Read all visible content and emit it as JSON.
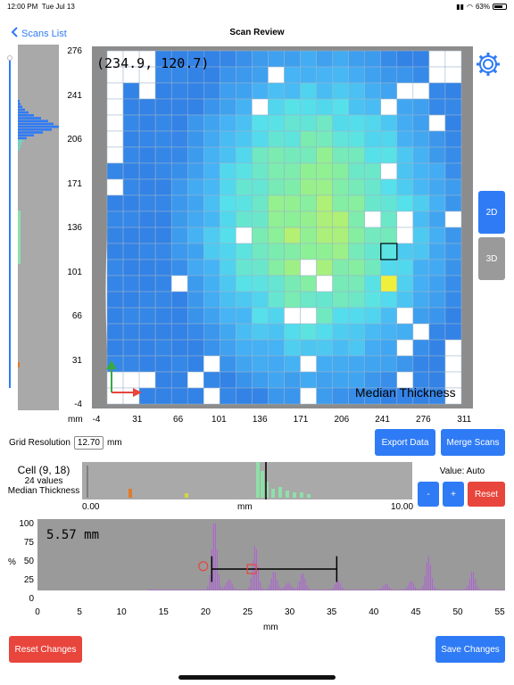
{
  "status": {
    "time": "12:00 PM",
    "date": "Tue Jul 13",
    "battery": "63%"
  },
  "nav": {
    "back_label": "Scans List",
    "title": "Scan Review"
  },
  "heatmap": {
    "coord_readout": "(234.9, 120.7)",
    "label": "Median Thickness",
    "y_ticks": [
      "276",
      "241",
      "206",
      "171",
      "136",
      "101",
      "66",
      "31",
      "-4"
    ],
    "x_unit": "mm",
    "x_ticks": [
      "-4",
      "31",
      "66",
      "101",
      "136",
      "171",
      "206",
      "241",
      "276",
      "311"
    ],
    "cols": 22,
    "rows": 22,
    "selected_cell": [
      17,
      12
    ]
  },
  "view_modes": {
    "mode_2d": "2D",
    "mode_3d": "3D",
    "active": "2D"
  },
  "grid_resolution": {
    "label": "Grid Resolution",
    "value": "12.70",
    "unit": "mm"
  },
  "actions": {
    "export": "Export Data",
    "merge": "Merge Scans",
    "reset_changes": "Reset Changes",
    "save_changes": "Save Changes"
  },
  "cell": {
    "title": "Cell (9, 18)",
    "count": "24 values",
    "metric": "Median Thickness"
  },
  "cell_hist": {
    "x_min": "0.00",
    "x_unit": "mm",
    "x_max": "10.00"
  },
  "value_control": {
    "label": "Value: Auto",
    "minus": "-",
    "plus": "+",
    "reset": "Reset"
  },
  "big_chart": {
    "readout": "5.57 mm",
    "y_unit": "%",
    "y_ticks": [
      "100",
      "75",
      "50",
      "25",
      "0"
    ],
    "x_ticks": [
      "0",
      "5",
      "10",
      "15",
      "20",
      "25",
      "30",
      "35",
      "40",
      "45",
      "50",
      "55"
    ],
    "x_label": "mm"
  },
  "colors": {
    "accent": "#2f7bf5",
    "danger": "#e8453c",
    "panel": "#a9a9a9"
  }
}
